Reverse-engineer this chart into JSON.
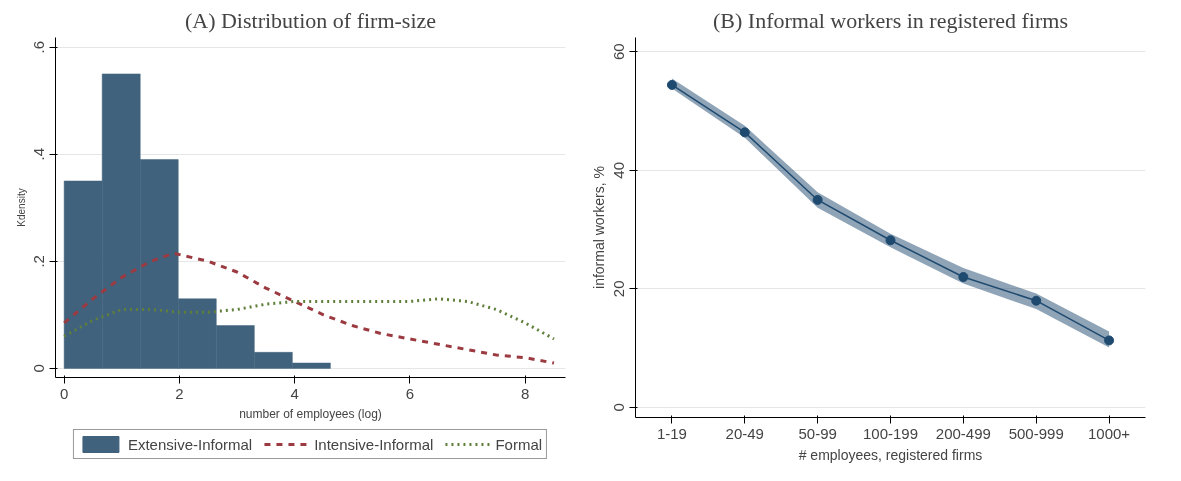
{
  "chart_data": [
    {
      "type": "histogram",
      "title": "(A) Distribution of firm-size",
      "xlabel": "number of employees (log)",
      "ylabel": "Kdensity",
      "xlim": [
        -0.15,
        8.7
      ],
      "ylim": [
        -0.017,
        0.618
      ],
      "xticks": [
        0,
        2,
        4,
        6,
        8
      ],
      "yticks": [
        0,
        {
          "value": 0.2,
          "label": ".2"
        },
        {
          "value": 0.4,
          "label": ".4"
        },
        {
          "value": 0.6,
          "label": ".6"
        }
      ],
      "grid": "y",
      "legend": "bottom",
      "series": [
        {
          "name": "Extensive-Informal",
          "type": "histogram",
          "color": "#41627d",
          "bins": [
            0,
            0.66,
            1.32,
            1.98,
            2.64,
            3.3,
            3.96,
            4.62
          ],
          "values": [
            0.35,
            0.55,
            0.39,
            0.13,
            0.08,
            0.03,
            0.01
          ]
        },
        {
          "name": "Intensive-Informal",
          "type": "line",
          "color": "#9b3a40",
          "line_style": "dashed",
          "x": [
            0,
            0.5,
            1,
            1.5,
            1.9,
            2.5,
            3,
            3.5,
            4,
            4.5,
            5,
            5.5,
            6,
            6.5,
            7,
            7.5,
            8,
            8.5
          ],
          "values": [
            0.085,
            0.13,
            0.17,
            0.2,
            0.215,
            0.2,
            0.18,
            0.15,
            0.125,
            0.1,
            0.08,
            0.065,
            0.055,
            0.045,
            0.035,
            0.025,
            0.02,
            0.01
          ]
        },
        {
          "name": "Formal",
          "type": "line",
          "color": "#5f7f3a",
          "line_style": "dotted",
          "x": [
            0,
            0.5,
            1,
            1.3,
            1.5,
            2,
            2.5,
            3,
            3.5,
            4,
            4.5,
            5,
            5.5,
            6,
            6.5,
            7,
            7.5,
            8,
            8.5
          ],
          "values": [
            0.06,
            0.09,
            0.11,
            0.11,
            0.11,
            0.105,
            0.105,
            0.11,
            0.12,
            0.125,
            0.125,
            0.125,
            0.125,
            0.125,
            0.13,
            0.125,
            0.11,
            0.085,
            0.055
          ]
        }
      ]
    },
    {
      "type": "line",
      "title": "(B) Informal workers in registered firms",
      "xlabel": "# employees, registered firms",
      "ylabel": "informal workers, %",
      "categories": [
        "1-19",
        "20-49",
        "50-99",
        "100-199",
        "200-499",
        "500-999",
        "1000+"
      ],
      "ylim": [
        -1.7,
        62.4
      ],
      "yticks": [
        0,
        20,
        40,
        60
      ],
      "grid": "y",
      "marker": "circle",
      "legend": false,
      "series": [
        {
          "color": "#1f4a70",
          "values": [
            54.4,
            46.4,
            35.0,
            28.2,
            22.0,
            18.0,
            11.3
          ],
          "lower": [
            53.8,
            45.5,
            33.7,
            27.0,
            20.9,
            16.6,
            10.1
          ],
          "upper": [
            55.5,
            47.5,
            36.3,
            29.3,
            23.5,
            19.2,
            12.8
          ]
        }
      ]
    }
  ]
}
